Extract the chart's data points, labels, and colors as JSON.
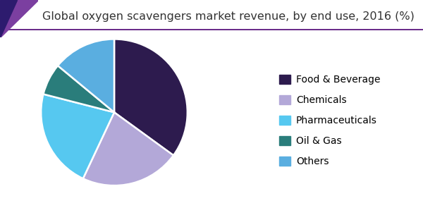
{
  "title": "Global oxygen scavengers market revenue, by end use, 2016 (%)",
  "labels": [
    "Food & Beverage",
    "Chemicals",
    "Pharmaceuticals",
    "Oil & Gas",
    "Others"
  ],
  "values": [
    35,
    22,
    22,
    7,
    14
  ],
  "colors": [
    "#2d1b4e",
    "#b3a8d8",
    "#56c8f0",
    "#2a7d7b",
    "#5aaee0"
  ],
  "startangle": 90,
  "background_color": "#ffffff",
  "title_fontsize": 11.5,
  "legend_fontsize": 10,
  "title_color": "#333333",
  "header_line_color": "#6b2d8b",
  "corner_color1": "#7b3fa0",
  "corner_color2": "#2d1b6e",
  "edge_color": "#ffffff"
}
